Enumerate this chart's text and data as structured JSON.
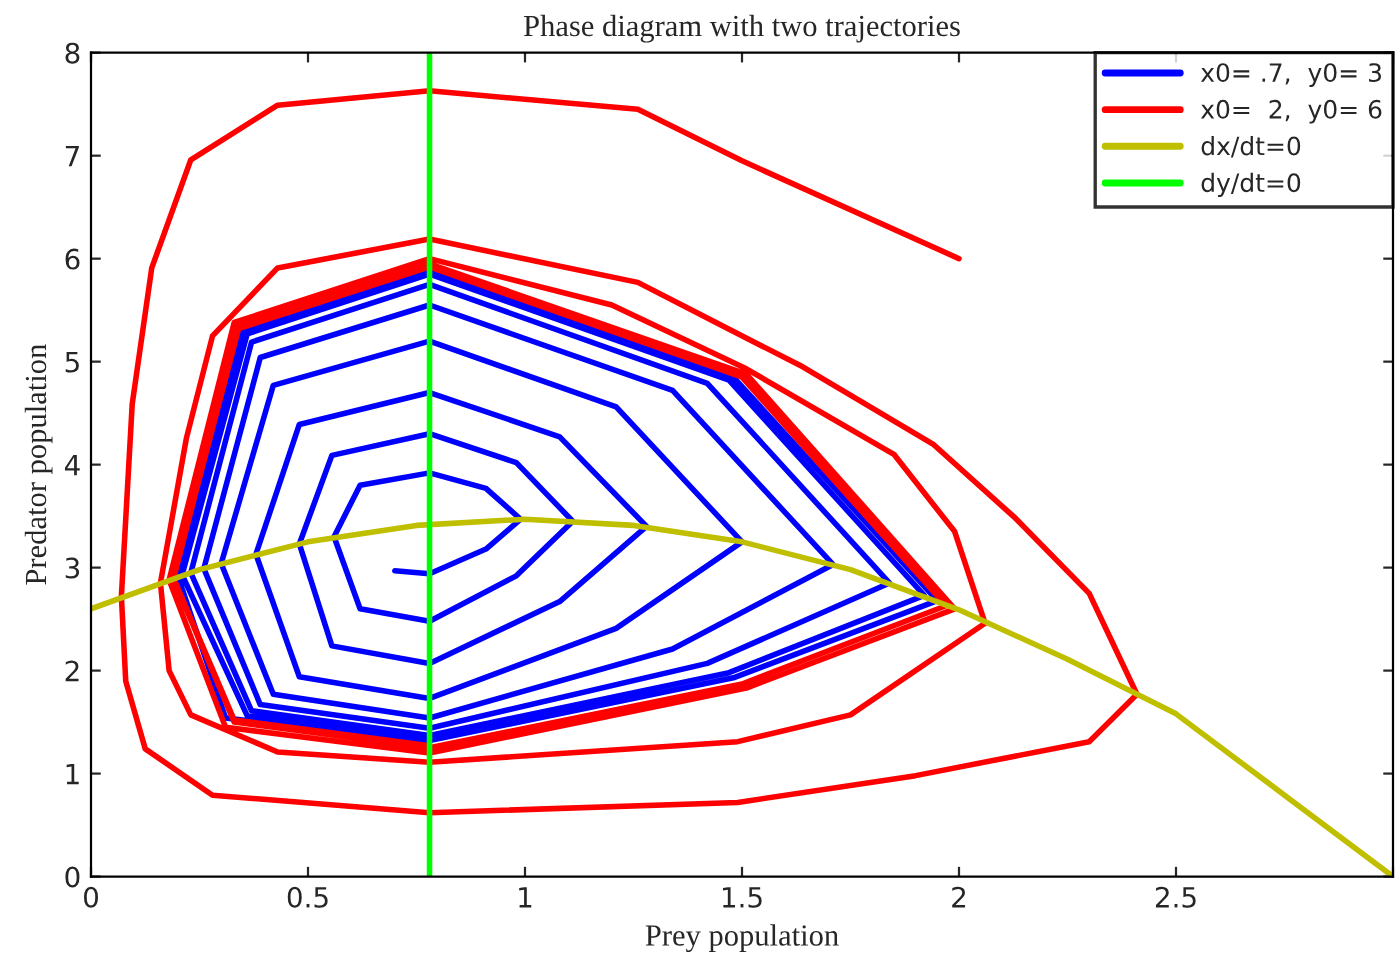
{
  "chart_data": {
    "type": "line",
    "title": "Phase diagram with two trajectories",
    "xlabel": "Prey population",
    "ylabel": "Predator population",
    "xlim": [
      0,
      3
    ],
    "xticks": [
      0,
      0.5,
      1,
      1.5,
      2,
      2.5,
      {
        "value": 3,
        "label": null
      }
    ],
    "ylim": [
      0,
      8
    ],
    "yticks": [
      0,
      1,
      2,
      3,
      4,
      5,
      6,
      7,
      8
    ],
    "grid": false,
    "legend": "top right",
    "marker": "none",
    "line_style": "solid",
    "series": [
      {
        "name": "x0= .7,  y0= 3",
        "color": "#0000ff",
        "x": [
          0.7,
          0.78,
          0.91,
          0.99,
          0.91,
          0.78,
          0.62,
          0.56,
          0.62,
          0.78,
          0.98,
          1.11,
          0.98,
          0.78,
          0.555,
          0.48,
          0.555,
          0.78,
          1.08,
          1.28,
          1.08,
          0.78,
          0.48,
          0.38,
          0.48,
          0.78,
          1.21,
          1.5,
          1.21,
          0.78,
          0.42,
          0.3,
          0.42,
          0.78,
          1.34,
          1.71,
          1.34,
          0.78,
          0.39,
          0.26,
          0.39,
          0.78,
          1.42,
          1.84,
          1.42,
          0.78,
          0.37,
          0.23,
          0.37,
          0.78,
          1.47,
          1.92,
          1.47,
          0.78,
          0.36,
          0.21,
          0.36,
          0.78,
          1.48,
          1.95,
          1.48,
          0.78,
          0.35,
          0.2,
          0.31,
          0.78
        ],
        "values": [
          2.97,
          2.94,
          3.18,
          3.47,
          3.77,
          3.92,
          3.8,
          3.3,
          2.6,
          2.48,
          2.92,
          3.45,
          4.02,
          4.3,
          4.09,
          3.23,
          2.24,
          2.07,
          2.67,
          3.4,
          4.27,
          4.7,
          4.39,
          3.13,
          1.94,
          1.73,
          2.41,
          3.25,
          4.56,
          5.2,
          4.77,
          3.04,
          1.77,
          1.54,
          2.21,
          3.03,
          4.72,
          5.55,
          5.04,
          2.99,
          1.67,
          1.44,
          2.07,
          2.85,
          4.79,
          5.75,
          5.19,
          2.95,
          1.61,
          1.37,
          1.98,
          2.73,
          4.82,
          5.85,
          5.27,
          2.93,
          1.56,
          1.32,
          1.93,
          2.68,
          4.85,
          5.9,
          5.3,
          2.92,
          1.54,
          1.3
        ]
      },
      {
        "name": "x0=  2,  y0= 6",
        "color": "#ff0000",
        "x": [
          2.0,
          1.5,
          1.26,
          0.78,
          0.43,
          0.23,
          0.14,
          0.095,
          0.07,
          0.08,
          0.125,
          0.28,
          0.78,
          1.49,
          1.9,
          2.3,
          2.41,
          2.3,
          2.13,
          1.94,
          1.64,
          1.44,
          1.26,
          0.78,
          0.43,
          0.28,
          0.22,
          0.16,
          0.18,
          0.23,
          0.43,
          0.78,
          1.49,
          1.75,
          2.06,
          1.99,
          1.85,
          1.51,
          1.2,
          0.78,
          0.33,
          0.18,
          0.31,
          0.78,
          1.51,
          1.99,
          1.51,
          0.78,
          0.34,
          0.19,
          0.33,
          0.78,
          1.5,
          1.97,
          1.5,
          0.78,
          0.34,
          0.19,
          0.33,
          0.78
        ],
        "values": [
          6.0,
          6.95,
          7.45,
          7.63,
          7.49,
          6.96,
          5.91,
          4.59,
          2.72,
          1.9,
          1.24,
          0.79,
          0.62,
          0.72,
          0.98,
          1.31,
          1.77,
          2.75,
          3.48,
          4.2,
          4.95,
          5.38,
          5.77,
          6.19,
          5.91,
          5.25,
          4.26,
          2.85,
          2.0,
          1.57,
          1.21,
          1.11,
          1.31,
          1.57,
          2.46,
          3.35,
          4.1,
          4.93,
          5.55,
          6.0,
          5.38,
          2.88,
          1.45,
          1.2,
          1.83,
          2.6,
          4.88,
          5.95,
          5.34,
          2.89,
          1.5,
          1.25,
          1.87,
          2.63,
          4.85,
          5.92,
          5.32,
          2.9,
          1.52,
          1.27
        ]
      },
      {
        "name": "dx/dt=0",
        "color": "#bfbf00",
        "x": [
          0,
          0.25,
          0.5,
          0.75,
          1.0,
          1.25,
          1.5,
          1.75,
          2.0,
          2.25,
          2.5,
          2.75,
          3.0
        ],
        "values": [
          2.6,
          2.98,
          3.25,
          3.41,
          3.47,
          3.41,
          3.25,
          2.98,
          2.59,
          2.11,
          1.58,
          0.79,
          0
        ]
      },
      {
        "name": "dy/dt=0",
        "color": "#00ff00",
        "x": [
          0.78,
          0.78
        ],
        "values": [
          0,
          8
        ]
      }
    ]
  }
}
